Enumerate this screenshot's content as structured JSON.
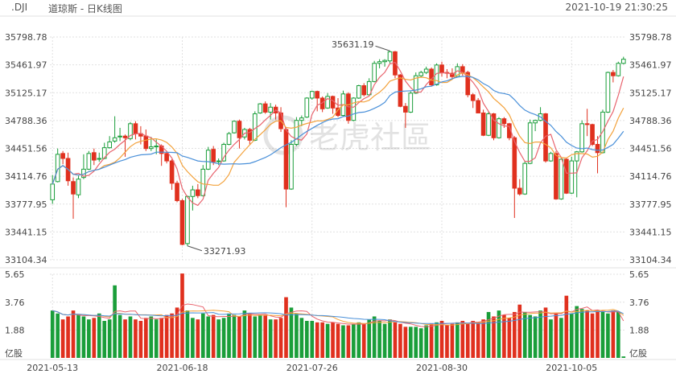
{
  "header": {
    "symbol": ".DJI",
    "title": "道琼斯 - 日K线图",
    "datetime": "2021-10-19 21:30:25"
  },
  "watermark": {
    "text": "老虎社區",
    "icon": "tiger-logo-icon"
  },
  "colors": {
    "up": "#1a9e3a",
    "down": "#e0301e",
    "ma_short": "#e8646e",
    "ma_mid": "#f3a23c",
    "ma_long": "#4a90d9",
    "grid": "#e1e1e1",
    "text": "#444444"
  },
  "chart_data": [
    {
      "type": "candlestick",
      "title": "",
      "y_ticks": [
        "35798.78",
        "35461.97",
        "35125.17",
        "34788.36",
        "34451.56",
        "34114.76",
        "33777.95",
        "33441.15",
        "33104.34"
      ],
      "ylim": [
        33104.34,
        35798.78
      ],
      "x_ticks": [
        "2021-05-13",
        "2021-06-18",
        "2021-07-26",
        "2021-08-30",
        "2021-10-05"
      ],
      "annotations": [
        {
          "label": "35631.19",
          "x": "2021-08-16",
          "y": 35631.19
        },
        {
          "label": "33271.93",
          "x": "2021-06-21",
          "y": 33271.93
        }
      ],
      "grid": true,
      "candles": [
        {
          "d": "2021-05-13",
          "o": 33830,
          "h": 34130,
          "l": 33780,
          "c": 34020
        },
        {
          "d": "2021-05-14",
          "o": 34050,
          "h": 34450,
          "l": 34040,
          "c": 34380
        },
        {
          "d": "2021-05-17",
          "o": 34390,
          "h": 34420,
          "l": 34260,
          "c": 34330
        },
        {
          "d": "2021-05-18",
          "o": 34330,
          "h": 34400,
          "l": 34000,
          "c": 34060
        },
        {
          "d": "2021-05-19",
          "o": 34050,
          "h": 34100,
          "l": 33600,
          "c": 33900
        },
        {
          "d": "2021-05-20",
          "o": 33890,
          "h": 34120,
          "l": 33850,
          "c": 34080
        },
        {
          "d": "2021-05-21",
          "o": 34100,
          "h": 34380,
          "l": 34080,
          "c": 34200
        },
        {
          "d": "2021-05-24",
          "o": 34200,
          "h": 34420,
          "l": 34190,
          "c": 34390
        },
        {
          "d": "2021-05-25",
          "o": 34400,
          "h": 34450,
          "l": 34250,
          "c": 34310
        },
        {
          "d": "2021-05-26",
          "o": 34320,
          "h": 34400,
          "l": 34290,
          "c": 34330
        },
        {
          "d": "2021-05-27",
          "o": 34330,
          "h": 34520,
          "l": 34320,
          "c": 34460
        },
        {
          "d": "2021-05-28",
          "o": 34460,
          "h": 34600,
          "l": 34450,
          "c": 34530
        },
        {
          "d": "2021-06-01",
          "o": 34540,
          "h": 34840,
          "l": 34520,
          "c": 34580
        },
        {
          "d": "2021-06-02",
          "o": 34590,
          "h": 34700,
          "l": 34540,
          "c": 34600
        },
        {
          "d": "2021-06-03",
          "o": 34600,
          "h": 34620,
          "l": 34350,
          "c": 34580
        },
        {
          "d": "2021-06-04",
          "o": 34570,
          "h": 34770,
          "l": 34550,
          "c": 34750
        },
        {
          "d": "2021-06-07",
          "o": 34750,
          "h": 34780,
          "l": 34560,
          "c": 34630
        },
        {
          "d": "2021-06-08",
          "o": 34630,
          "h": 34720,
          "l": 34500,
          "c": 34600
        },
        {
          "d": "2021-06-09",
          "o": 34600,
          "h": 34680,
          "l": 34420,
          "c": 34450
        },
        {
          "d": "2021-06-10",
          "o": 34450,
          "h": 34590,
          "l": 34420,
          "c": 34470
        },
        {
          "d": "2021-06-11",
          "o": 34470,
          "h": 34560,
          "l": 34380,
          "c": 34480
        },
        {
          "d": "2021-06-14",
          "o": 34480,
          "h": 34500,
          "l": 34240,
          "c": 34390
        },
        {
          "d": "2021-06-15",
          "o": 34390,
          "h": 34420,
          "l": 34270,
          "c": 34300
        },
        {
          "d": "2021-06-16",
          "o": 34300,
          "h": 34320,
          "l": 33950,
          "c": 34030
        },
        {
          "d": "2021-06-17",
          "o": 34030,
          "h": 34060,
          "l": 33800,
          "c": 33820
        },
        {
          "d": "2021-06-18",
          "o": 33820,
          "h": 33840,
          "l": 33280,
          "c": 33290
        },
        {
          "d": "2021-06-21",
          "o": 33300,
          "h": 33880,
          "l": 33272,
          "c": 33870
        },
        {
          "d": "2021-06-22",
          "o": 33870,
          "h": 34000,
          "l": 33700,
          "c": 33950
        },
        {
          "d": "2021-06-23",
          "o": 33950,
          "h": 34020,
          "l": 33850,
          "c": 33880
        },
        {
          "d": "2021-06-24",
          "o": 33880,
          "h": 34250,
          "l": 33870,
          "c": 34200
        },
        {
          "d": "2021-06-25",
          "o": 34200,
          "h": 34470,
          "l": 34190,
          "c": 34430
        },
        {
          "d": "2021-06-28",
          "o": 34440,
          "h": 34480,
          "l": 34250,
          "c": 34290
        },
        {
          "d": "2021-06-29",
          "o": 34290,
          "h": 34330,
          "l": 34250,
          "c": 34300
        },
        {
          "d": "2021-06-30",
          "o": 34300,
          "h": 34520,
          "l": 34290,
          "c": 34500
        },
        {
          "d": "2021-07-01",
          "o": 34500,
          "h": 34650,
          "l": 34490,
          "c": 34630
        },
        {
          "d": "2021-07-02",
          "o": 34640,
          "h": 34790,
          "l": 34630,
          "c": 34780
        },
        {
          "d": "2021-07-06",
          "o": 34780,
          "h": 34800,
          "l": 34450,
          "c": 34580
        },
        {
          "d": "2021-07-07",
          "o": 34590,
          "h": 34700,
          "l": 34560,
          "c": 34680
        },
        {
          "d": "2021-07-08",
          "o": 34680,
          "h": 34700,
          "l": 34500,
          "c": 34550
        },
        {
          "d": "2021-07-09",
          "o": 34550,
          "h": 34900,
          "l": 34540,
          "c": 34870
        },
        {
          "d": "2021-07-12",
          "o": 34880,
          "h": 35000,
          "l": 34870,
          "c": 34990
        },
        {
          "d": "2021-07-13",
          "o": 34990,
          "h": 35020,
          "l": 34870,
          "c": 34890
        },
        {
          "d": "2021-07-14",
          "o": 34890,
          "h": 35000,
          "l": 34800,
          "c": 34950
        },
        {
          "d": "2021-07-15",
          "o": 34950,
          "h": 34980,
          "l": 34800,
          "c": 34880
        },
        {
          "d": "2021-07-16",
          "o": 34880,
          "h": 34950,
          "l": 34650,
          "c": 34690
        },
        {
          "d": "2021-07-19",
          "o": 34680,
          "h": 34700,
          "l": 33740,
          "c": 33960
        },
        {
          "d": "2021-07-20",
          "o": 33960,
          "h": 34550,
          "l": 33950,
          "c": 34500
        },
        {
          "d": "2021-07-21",
          "o": 34500,
          "h": 34830,
          "l": 34480,
          "c": 34790
        },
        {
          "d": "2021-07-22",
          "o": 34790,
          "h": 34850,
          "l": 34720,
          "c": 34820
        },
        {
          "d": "2021-07-23",
          "o": 34830,
          "h": 35070,
          "l": 34820,
          "c": 35060
        },
        {
          "d": "2021-07-26",
          "o": 35060,
          "h": 35150,
          "l": 35040,
          "c": 35140
        },
        {
          "d": "2021-07-27",
          "o": 35140,
          "h": 35150,
          "l": 34900,
          "c": 35060
        },
        {
          "d": "2021-07-28",
          "o": 35060,
          "h": 35080,
          "l": 34890,
          "c": 34930
        },
        {
          "d": "2021-07-29",
          "o": 34940,
          "h": 35120,
          "l": 34930,
          "c": 35080
        },
        {
          "d": "2021-07-30",
          "o": 35080,
          "h": 35090,
          "l": 34870,
          "c": 34940
        },
        {
          "d": "2021-08-02",
          "o": 34940,
          "h": 35060,
          "l": 34830,
          "c": 34850
        },
        {
          "d": "2021-08-03",
          "o": 34850,
          "h": 35150,
          "l": 34840,
          "c": 35110
        },
        {
          "d": "2021-08-04",
          "o": 35110,
          "h": 35130,
          "l": 34750,
          "c": 34790
        },
        {
          "d": "2021-08-05",
          "o": 34790,
          "h": 35070,
          "l": 34780,
          "c": 35060
        },
        {
          "d": "2021-08-06",
          "o": 35060,
          "h": 35220,
          "l": 35050,
          "c": 35210
        },
        {
          "d": "2021-08-09",
          "o": 35210,
          "h": 35240,
          "l": 35080,
          "c": 35100
        },
        {
          "d": "2021-08-10",
          "o": 35100,
          "h": 35300,
          "l": 35090,
          "c": 35260
        },
        {
          "d": "2021-08-11",
          "o": 35260,
          "h": 35510,
          "l": 35250,
          "c": 35480
        },
        {
          "d": "2021-08-12",
          "o": 35480,
          "h": 35530,
          "l": 35420,
          "c": 35500
        },
        {
          "d": "2021-08-13",
          "o": 35500,
          "h": 35530,
          "l": 35440,
          "c": 35515
        },
        {
          "d": "2021-08-16",
          "o": 35510,
          "h": 35631.19,
          "l": 35480,
          "c": 35620
        },
        {
          "d": "2021-08-17",
          "o": 35620,
          "h": 35630,
          "l": 35300,
          "c": 35340
        },
        {
          "d": "2021-08-18",
          "o": 35340,
          "h": 35350,
          "l": 34950,
          "c": 34960
        },
        {
          "d": "2021-08-19",
          "o": 34960,
          "h": 35000,
          "l": 34700,
          "c": 34890
        },
        {
          "d": "2021-08-20",
          "o": 34890,
          "h": 35140,
          "l": 34880,
          "c": 35120
        },
        {
          "d": "2021-08-23",
          "o": 35120,
          "h": 35370,
          "l": 35110,
          "c": 35330
        },
        {
          "d": "2021-08-24",
          "o": 35330,
          "h": 35390,
          "l": 35310,
          "c": 35370
        },
        {
          "d": "2021-08-25",
          "o": 35370,
          "h": 35440,
          "l": 35350,
          "c": 35410
        },
        {
          "d": "2021-08-26",
          "o": 35410,
          "h": 35430,
          "l": 35200,
          "c": 35220
        },
        {
          "d": "2021-08-27",
          "o": 35220,
          "h": 35480,
          "l": 35210,
          "c": 35460
        },
        {
          "d": "2021-08-30",
          "o": 35460,
          "h": 35500,
          "l": 35320,
          "c": 35370
        },
        {
          "d": "2021-08-31",
          "o": 35370,
          "h": 35410,
          "l": 35300,
          "c": 35360
        },
        {
          "d": "2021-09-01",
          "o": 35360,
          "h": 35420,
          "l": 35290,
          "c": 35320
        },
        {
          "d": "2021-09-02",
          "o": 35320,
          "h": 35480,
          "l": 35310,
          "c": 35440
        },
        {
          "d": "2021-09-03",
          "o": 35440,
          "h": 35470,
          "l": 35330,
          "c": 35370
        },
        {
          "d": "2021-09-07",
          "o": 35370,
          "h": 35390,
          "l": 35070,
          "c": 35100
        },
        {
          "d": "2021-09-08",
          "o": 35100,
          "h": 35120,
          "l": 34940,
          "c": 35030
        },
        {
          "d": "2021-09-09",
          "o": 35030,
          "h": 35060,
          "l": 34880,
          "c": 34880
        },
        {
          "d": "2021-09-10",
          "o": 34880,
          "h": 34920,
          "l": 34600,
          "c": 34610
        },
        {
          "d": "2021-09-13",
          "o": 34610,
          "h": 34900,
          "l": 34600,
          "c": 34870
        },
        {
          "d": "2021-09-14",
          "o": 34870,
          "h": 34880,
          "l": 34550,
          "c": 34580
        },
        {
          "d": "2021-09-15",
          "o": 34580,
          "h": 34830,
          "l": 34570,
          "c": 34810
        },
        {
          "d": "2021-09-16",
          "o": 34810,
          "h": 34830,
          "l": 34700,
          "c": 34750
        },
        {
          "d": "2021-09-17",
          "o": 34750,
          "h": 34760,
          "l": 34550,
          "c": 34580
        },
        {
          "d": "2021-09-20",
          "o": 34580,
          "h": 34600,
          "l": 33610,
          "c": 33970
        },
        {
          "d": "2021-09-21",
          "o": 33970,
          "h": 34080,
          "l": 33880,
          "c": 33900
        },
        {
          "d": "2021-09-22",
          "o": 33900,
          "h": 34300,
          "l": 33890,
          "c": 34270
        },
        {
          "d": "2021-09-23",
          "o": 34270,
          "h": 34800,
          "l": 34260,
          "c": 34760
        },
        {
          "d": "2021-09-24",
          "o": 34760,
          "h": 34800,
          "l": 34660,
          "c": 34790
        },
        {
          "d": "2021-09-27",
          "o": 34790,
          "h": 34950,
          "l": 34780,
          "c": 34870
        },
        {
          "d": "2021-09-28",
          "o": 34870,
          "h": 34880,
          "l": 34280,
          "c": 34300
        },
        {
          "d": "2021-09-29",
          "o": 34300,
          "h": 34410,
          "l": 34290,
          "c": 34390
        },
        {
          "d": "2021-09-30",
          "o": 34390,
          "h": 34420,
          "l": 33830,
          "c": 33840
        },
        {
          "d": "2021-10-01",
          "o": 33840,
          "h": 34330,
          "l": 33830,
          "c": 34320
        },
        {
          "d": "2021-10-04",
          "o": 34320,
          "h": 34340,
          "l": 33900,
          "c": 33910
        },
        {
          "d": "2021-10-05",
          "o": 33910,
          "h": 34350,
          "l": 33900,
          "c": 34300
        },
        {
          "d": "2021-10-06",
          "o": 34300,
          "h": 34420,
          "l": 33860,
          "c": 34410
        },
        {
          "d": "2021-10-07",
          "o": 34410,
          "h": 34790,
          "l": 34400,
          "c": 34750
        },
        {
          "d": "2021-10-08",
          "o": 34750,
          "h": 34930,
          "l": 34600,
          "c": 34740
        },
        {
          "d": "2021-10-11",
          "o": 34740,
          "h": 34750,
          "l": 34480,
          "c": 34500
        },
        {
          "d": "2021-10-12",
          "o": 34500,
          "h": 34600,
          "l": 34150,
          "c": 34400
        },
        {
          "d": "2021-10-13",
          "o": 34400,
          "h": 34920,
          "l": 34390,
          "c": 34890
        },
        {
          "d": "2021-10-14",
          "o": 34890,
          "h": 35380,
          "l": 34880,
          "c": 35370
        },
        {
          "d": "2021-10-15",
          "o": 35370,
          "h": 35400,
          "l": 35250,
          "c": 35330
        },
        {
          "d": "2021-10-18",
          "o": 35330,
          "h": 35500,
          "l": 35320,
          "c": 35480
        },
        {
          "d": "2021-10-19",
          "o": 35480,
          "h": 35560,
          "l": 35470,
          "c": 35530
        }
      ],
      "moving_averages": [
        {
          "color_key": "ma_short",
          "period": 5
        },
        {
          "color_key": "ma_mid",
          "period": 10
        },
        {
          "color_key": "ma_long",
          "period": 20
        }
      ]
    },
    {
      "type": "bar",
      "title": "",
      "unit_label": "亿股",
      "y_ticks": [
        "5.65",
        "3.76",
        "1.88"
      ],
      "ylim": [
        0,
        5.65
      ],
      "volumes": [
        3.2,
        3.0,
        2.6,
        2.8,
        3.2,
        2.9,
        2.8,
        2.6,
        2.7,
        3.0,
        2.5,
        2.6,
        4.9,
        2.9,
        2.6,
        2.8,
        2.6,
        2.5,
        2.7,
        2.8,
        2.6,
        2.7,
        2.9,
        3.0,
        3.4,
        5.7,
        3.2,
        2.7,
        2.6,
        3.0,
        2.8,
        2.9,
        2.6,
        2.7,
        3.0,
        2.9,
        2.8,
        3.2,
        3.0,
        2.8,
        2.9,
        2.9,
        2.6,
        2.6,
        2.7,
        4.1,
        3.4,
        3.0,
        2.7,
        2.5,
        2.5,
        2.4,
        2.4,
        2.3,
        2.4,
        2.3,
        2.2,
        2.2,
        2.3,
        2.4,
        2.3,
        2.6,
        2.8,
        2.5,
        2.3,
        2.6,
        2.4,
        2.3,
        2.1,
        2.1,
        2.1,
        2.0,
        2.2,
        2.3,
        2.4,
        2.5,
        2.2,
        2.3,
        2.4,
        2.5,
        2.3,
        2.5,
        2.4,
        2.6,
        3.1,
        2.8,
        3.2,
        2.9,
        2.7,
        3.1,
        3.6,
        3.1,
        2.9,
        2.8,
        3.2,
        3.4,
        2.6,
        3.0,
        2.7,
        4.2,
        3.0,
        3.5,
        3.3,
        3.2,
        3.0,
        3.2,
        3.1,
        3.0,
        3.2,
        3.1,
        0.1
      ]
    }
  ]
}
